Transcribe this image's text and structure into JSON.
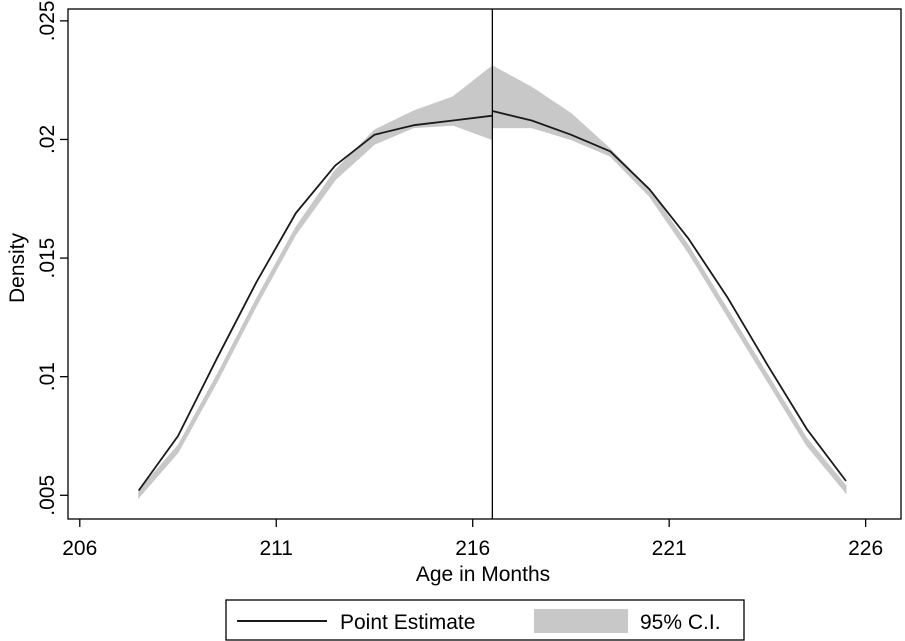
{
  "chart_data": {
    "type": "line",
    "title": "",
    "xlabel": "Age in Months",
    "ylabel": "Density",
    "xlim": [
      205.7,
      226.9
    ],
    "ylim": [
      0.004,
      0.0255
    ],
    "x_ticks": [
      206,
      211,
      216,
      221,
      226
    ],
    "x_tick_labels": [
      "206",
      "211",
      "216",
      "221",
      "226"
    ],
    "y_ticks": [
      0.005,
      0.01,
      0.015,
      0.02,
      0.025
    ],
    "y_tick_labels": [
      ".005",
      ".01",
      ".015",
      ".02",
      ".025"
    ],
    "grid": false,
    "cutoff_x": 216.5,
    "legend": {
      "placement": "bottom",
      "entries": [
        "Point Estimate",
        "95% C.I."
      ]
    },
    "series": [
      {
        "name": "Point Estimate",
        "kind": "line",
        "color": "#1a1a1a",
        "segments": [
          {
            "x": [
              207.5,
              208.5,
              209.5,
              210.5,
              211.5,
              212.5,
              213.5,
              214.5,
              215.5,
              216.5
            ],
            "y": [
              0.0052,
              0.0075,
              0.0108,
              0.014,
              0.0169,
              0.0189,
              0.0202,
              0.0206,
              0.0208,
              0.021
            ]
          },
          {
            "x": [
              216.5,
              217.5,
              218.5,
              219.5,
              220.5,
              221.5,
              222.5,
              223.5,
              224.5,
              225.5
            ],
            "y": [
              0.0212,
              0.0208,
              0.0202,
              0.0195,
              0.0179,
              0.0158,
              0.0133,
              0.0105,
              0.0078,
              0.0056
            ]
          }
        ]
      },
      {
        "name": "95% C.I.",
        "kind": "band",
        "color": "#c8c8c8",
        "segments": [
          {
            "x": [
              207.5,
              208.5,
              209.5,
              210.5,
              211.5,
              212.5,
              213.5,
              214.5,
              215.5,
              216.5
            ],
            "lower": [
              0.0049,
              0.0068,
              0.0098,
              0.013,
              0.016,
              0.0183,
              0.0198,
              0.0205,
              0.0206,
              0.02
            ],
            "upper": [
              0.0052,
              0.0071,
              0.0101,
              0.0133,
              0.0163,
              0.0187,
              0.0204,
              0.0212,
              0.0218,
              0.0231
            ]
          },
          {
            "x": [
              216.5,
              217.5,
              218.5,
              219.5,
              220.5,
              221.5,
              222.5,
              223.5,
              224.5,
              225.5
            ],
            "lower": [
              0.0205,
              0.0205,
              0.02,
              0.0193,
              0.0176,
              0.0152,
              0.0125,
              0.0098,
              0.0071,
              0.0051
            ],
            "upper": [
              0.0231,
              0.0222,
              0.0211,
              0.0196,
              0.0179,
              0.0155,
              0.0128,
              0.0101,
              0.0074,
              0.0054
            ]
          }
        ]
      }
    ]
  }
}
